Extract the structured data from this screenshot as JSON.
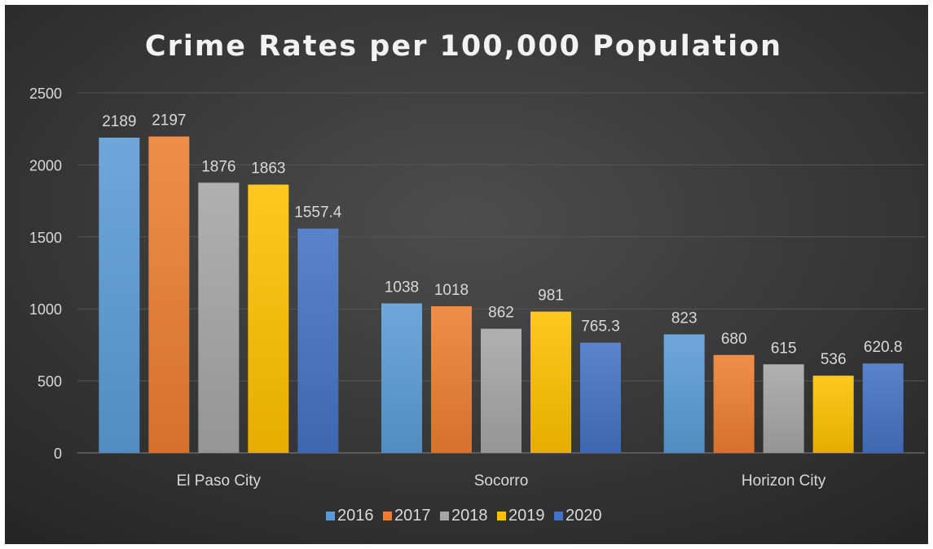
{
  "chart_data": {
    "type": "bar",
    "title": "Crime Rates per 100,000 Population",
    "xlabel": "",
    "ylabel": "",
    "categories": [
      "El Paso City",
      "Socorro",
      "Horizon City"
    ],
    "series": [
      {
        "name": "2016",
        "values": [
          2189,
          1038,
          823
        ],
        "color": "#5b9bd5"
      },
      {
        "name": "2017",
        "values": [
          2197,
          1018,
          680
        ],
        "color": "#ed7d31"
      },
      {
        "name": "2018",
        "values": [
          1876,
          862,
          615
        ],
        "color": "#a5a5a5"
      },
      {
        "name": "2019",
        "values": [
          1863,
          981,
          536
        ],
        "color": "#ffc000"
      },
      {
        "name": "2020",
        "values": [
          1557.4,
          765.3,
          620.8
        ],
        "color": "#4472c4"
      }
    ],
    "data_labels": [
      [
        "2189",
        "1038",
        "823"
      ],
      [
        "2197",
        "1018",
        "680"
      ],
      [
        "1876",
        "862",
        "615"
      ],
      [
        "1863",
        "981",
        "536"
      ],
      [
        "1557.4",
        "765.3",
        "620.8"
      ]
    ],
    "yticks": [
      "0",
      "500",
      "1000",
      "1500",
      "2000",
      "2500"
    ],
    "ylim": [
      0,
      2500
    ],
    "grid": true,
    "legend_position": "bottom",
    "background_color": "#3a3a3a"
  }
}
